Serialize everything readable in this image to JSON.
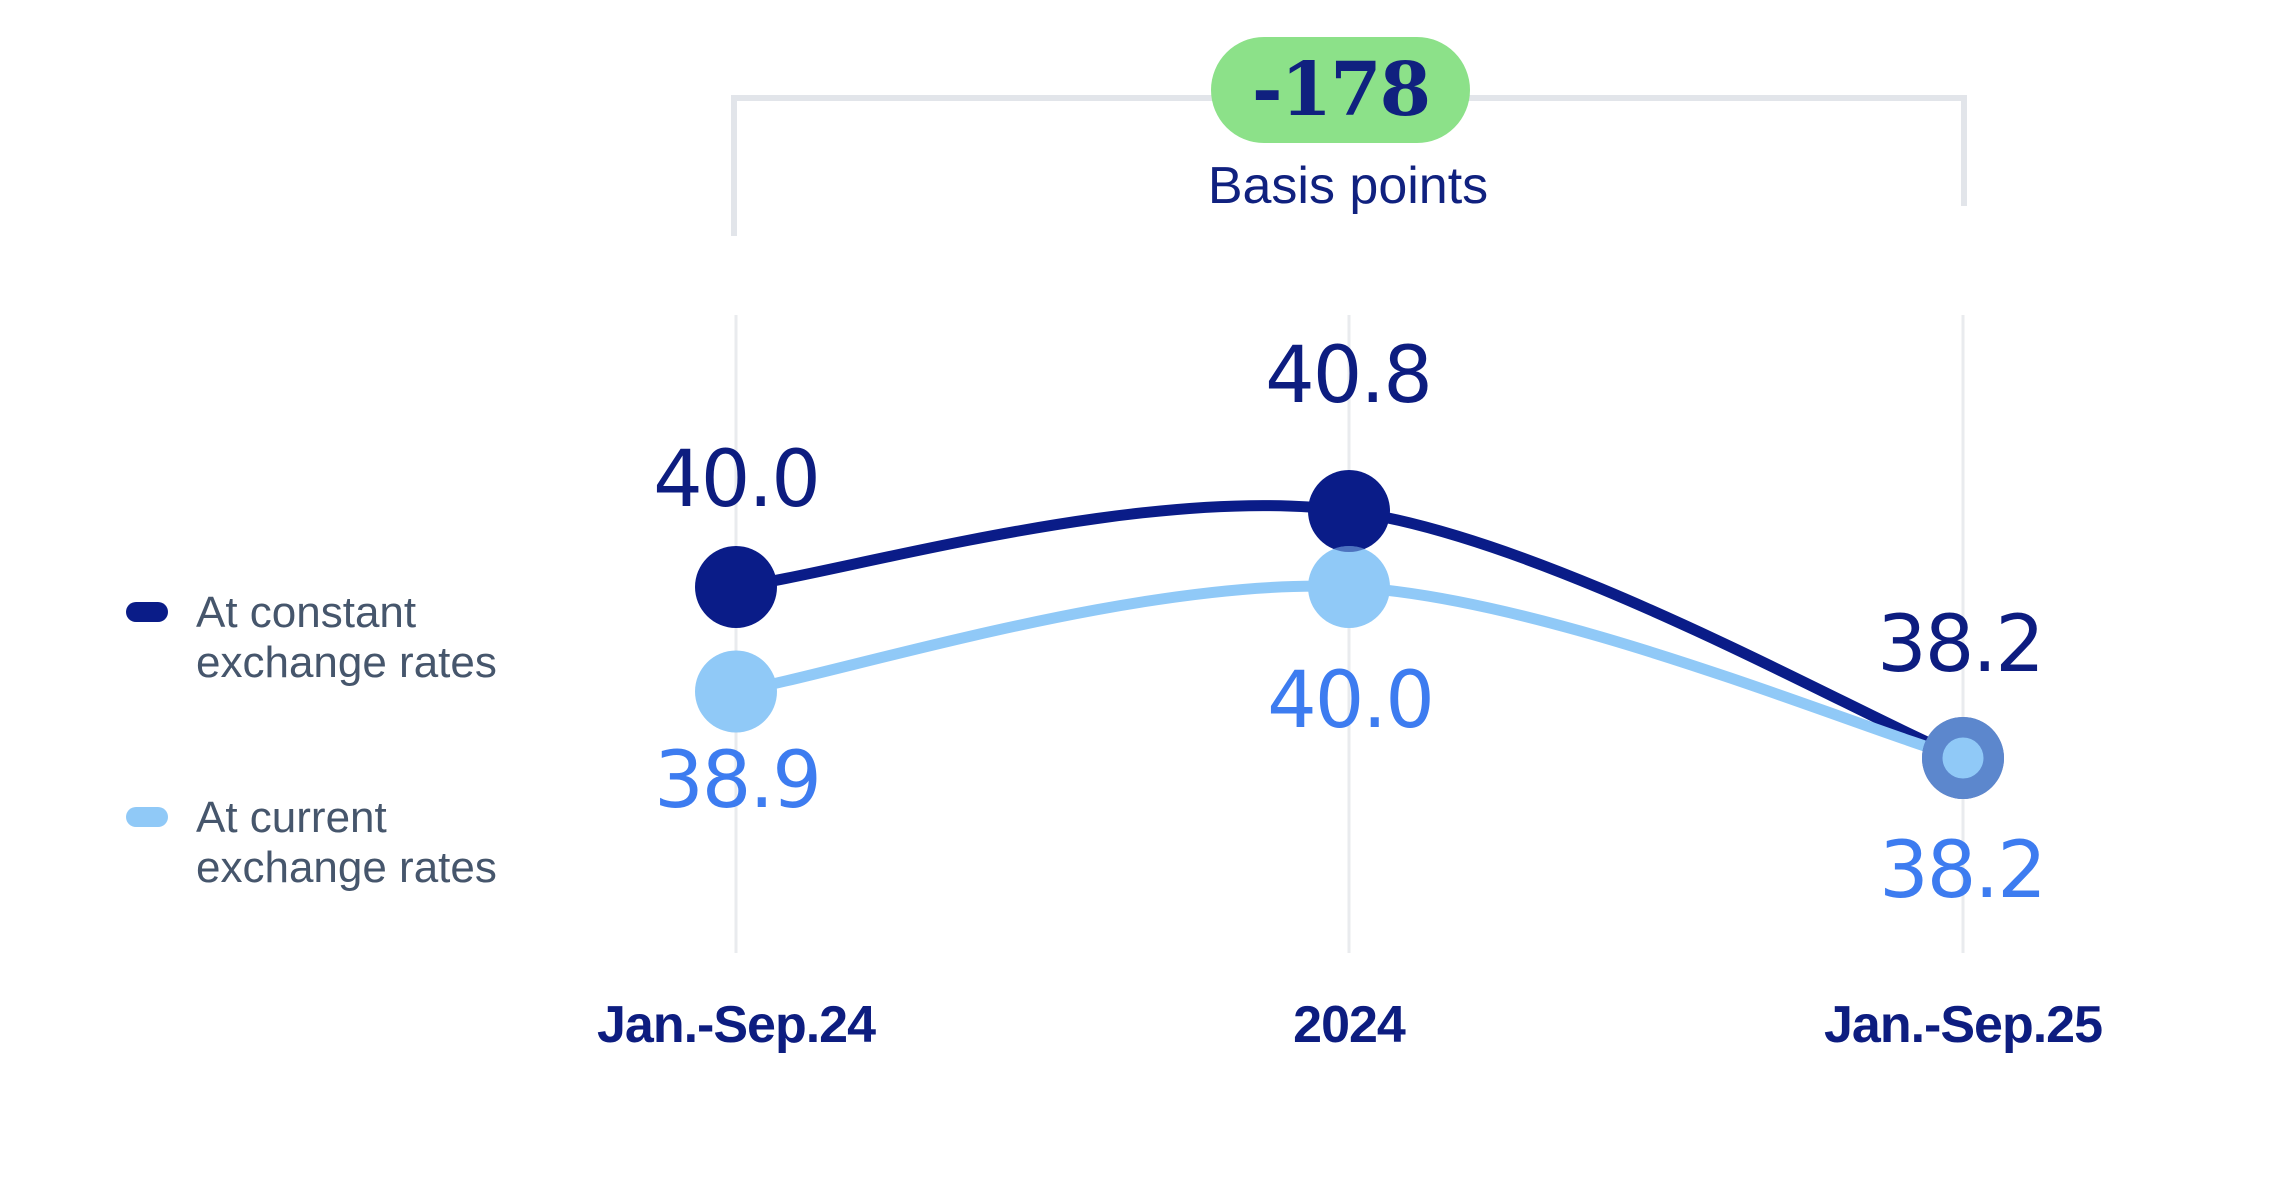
{
  "legend": [
    {
      "lines": [
        "At constant",
        "exchange rates"
      ]
    },
    {
      "lines": [
        "At current",
        "exchange rates"
      ]
    }
  ],
  "colors": {
    "navy": "#0a1c88",
    "light_blue": "#90c9f7",
    "current_label_blue": "#3d7cf0",
    "legend_text": "#46566c",
    "gridline": "#e9ebee",
    "bracket": "#e2e5ea",
    "badge_green": "#8ce189",
    "merged_ring": "#5b85d8"
  },
  "chart_data": {
    "type": "line",
    "categories": [
      "Jan.-Sep.24",
      "2024",
      "Jan.-Sep.25"
    ],
    "series": [
      {
        "name": "At constant exchange rates",
        "values": [
          40.0,
          40.8,
          38.2
        ],
        "labels": [
          "40.0",
          "40.8",
          "38.2"
        ],
        "color": "#0a1c88",
        "label_color": "#0d1d80"
      },
      {
        "name": "At current exchange rates",
        "values": [
          38.9,
          40.0,
          38.2
        ],
        "labels": [
          "38.9",
          "40.0",
          "38.2"
        ],
        "color": "#90c9f7",
        "label_color": "#3d7cf0"
      }
    ],
    "annotation": {
      "value": "-178",
      "unit": "Basis points",
      "badge_color": "#8ce189",
      "text_color": "#10217f"
    },
    "ylim": [
      37.5,
      41.5
    ],
    "grid": "vertical category gridlines",
    "legend_position": "left",
    "merged_last_point": true,
    "value_label_positions": "constant above line, current below line"
  }
}
